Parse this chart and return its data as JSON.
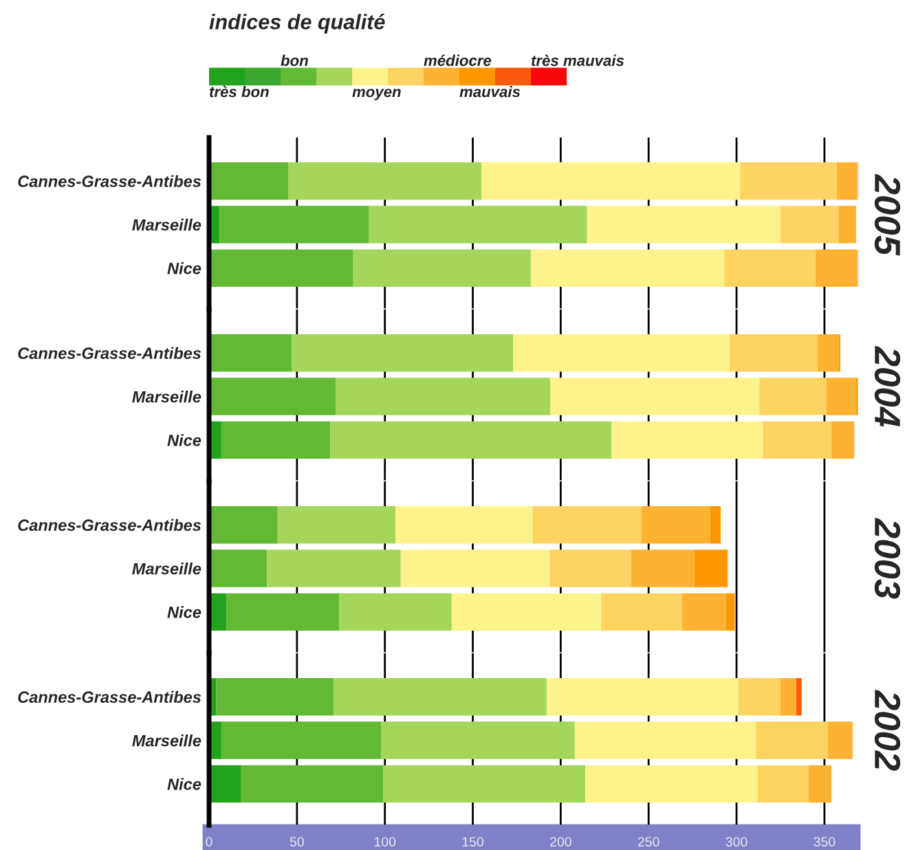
{
  "chart_data": [
    {
      "type": "bar",
      "orientation": "horizontal",
      "stacked": true,
      "title": "2005",
      "legend_title": "indices de qualité",
      "annotations": [
        "très bon",
        "bon",
        "moyen",
        "médiocre",
        "mauvais",
        "très mauvais"
      ],
      "grid": "x",
      "tick_labels": "y",
      "categories": [
        "Cannes-Grasse-Antibes",
        "Marseille",
        "Nice"
      ],
      "xlim": [
        0,
        370
      ],
      "xticks": [
        0,
        50,
        100,
        150,
        200,
        250,
        300,
        350
      ],
      "series": [
        {
          "color": "#22a31c",
          "values": [
            0,
            6,
            0
          ]
        },
        {
          "color": "#3aa82e",
          "values": [
            0,
            0,
            0
          ]
        },
        {
          "color": "#62b934",
          "values": [
            45,
            85,
            82
          ]
        },
        {
          "color": "#a6d55b",
          "values": [
            110,
            124,
            101
          ]
        },
        {
          "color": "#fdf38c",
          "values": [
            147,
            110,
            110
          ]
        },
        {
          "color": "#fdd462",
          "values": [
            55,
            33,
            52
          ]
        },
        {
          "color": "#fdb232",
          "values": [
            12,
            10,
            24
          ]
        },
        {
          "color": "#fd9700",
          "values": [
            0,
            0,
            0
          ]
        },
        {
          "color": "#fb5a0c",
          "values": [
            0,
            0,
            0
          ]
        },
        {
          "color": "#f80808",
          "values": [
            0,
            0,
            0
          ]
        }
      ]
    },
    {
      "type": "bar",
      "orientation": "horizontal",
      "stacked": true,
      "title": "2004",
      "grid": "x",
      "tick_labels": "y",
      "categories": [
        "Cannes-Grasse-Antibes",
        "Marseille",
        "Nice"
      ],
      "xlim": [
        0,
        370
      ],
      "xticks": [
        0,
        50,
        100,
        150,
        200,
        250,
        300,
        350
      ],
      "series": [
        {
          "color": "#22a31c",
          "values": [
            0,
            0,
            7
          ]
        },
        {
          "color": "#3aa82e",
          "values": [
            0,
            0,
            0
          ]
        },
        {
          "color": "#62b934",
          "values": [
            47,
            72,
            62
          ]
        },
        {
          "color": "#a6d55b",
          "values": [
            126,
            122,
            160
          ]
        },
        {
          "color": "#fdf38c",
          "values": [
            123,
            119,
            86
          ]
        },
        {
          "color": "#fdd462",
          "values": [
            50,
            38,
            39
          ]
        },
        {
          "color": "#fdb232",
          "values": [
            12,
            17,
            13
          ]
        },
        {
          "color": "#fd9700",
          "values": [
            1,
            1,
            0
          ]
        },
        {
          "color": "#fb5a0c",
          "values": [
            0,
            0,
            0
          ]
        },
        {
          "color": "#f80808",
          "values": [
            0,
            0,
            0
          ]
        }
      ]
    },
    {
      "type": "bar",
      "orientation": "horizontal",
      "stacked": true,
      "title": "2003",
      "grid": "x",
      "tick_labels": "y",
      "categories": [
        "Cannes-Grasse-Antibes",
        "Marseille",
        "Nice"
      ],
      "xlim": [
        0,
        370
      ],
      "xticks": [
        0,
        50,
        100,
        150,
        200,
        250,
        300,
        350
      ],
      "series": [
        {
          "color": "#22a31c",
          "values": [
            0,
            0,
            10
          ]
        },
        {
          "color": "#3aa82e",
          "values": [
            0,
            0,
            0
          ]
        },
        {
          "color": "#62b934",
          "values": [
            39,
            33,
            64
          ]
        },
        {
          "color": "#a6d55b",
          "values": [
            67,
            76,
            64
          ]
        },
        {
          "color": "#fdf38c",
          "values": [
            78,
            85,
            85
          ]
        },
        {
          "color": "#fdd462",
          "values": [
            62,
            46,
            46
          ]
        },
        {
          "color": "#fdb232",
          "values": [
            39,
            36,
            25
          ]
        },
        {
          "color": "#fd9700",
          "values": [
            6,
            19,
            5
          ]
        },
        {
          "color": "#fb5a0c",
          "values": [
            0,
            0,
            0
          ]
        },
        {
          "color": "#f80808",
          "values": [
            0,
            0,
            0
          ]
        }
      ]
    },
    {
      "type": "bar",
      "orientation": "horizontal",
      "stacked": true,
      "title": "2002",
      "grid": "x",
      "categories": [
        "Cannes-Grasse-Antibes",
        "Marseille",
        "Nice"
      ],
      "xlim": [
        0,
        370
      ],
      "xticks": [
        0,
        50,
        100,
        150,
        200,
        250,
        300,
        350
      ],
      "series": [
        {
          "color": "#22a31c",
          "values": [
            4,
            7,
            18
          ]
        },
        {
          "color": "#3aa82e",
          "values": [
            0,
            0,
            0
          ]
        },
        {
          "color": "#62b934",
          "values": [
            67,
            91,
            81
          ]
        },
        {
          "color": "#a6d55b",
          "values": [
            121,
            110,
            115
          ]
        },
        {
          "color": "#fdf38c",
          "values": [
            109,
            103,
            98
          ]
        },
        {
          "color": "#fdd462",
          "values": [
            24,
            41,
            29
          ]
        },
        {
          "color": "#fdb232",
          "values": [
            9,
            14,
            13
          ]
        },
        {
          "color": "#fd9700",
          "values": [
            0,
            0,
            0
          ]
        },
        {
          "color": "#fb5a0c",
          "values": [
            3,
            0,
            0
          ]
        },
        {
          "color": "#f80808",
          "values": [
            0,
            0,
            0
          ]
        }
      ]
    }
  ]
}
